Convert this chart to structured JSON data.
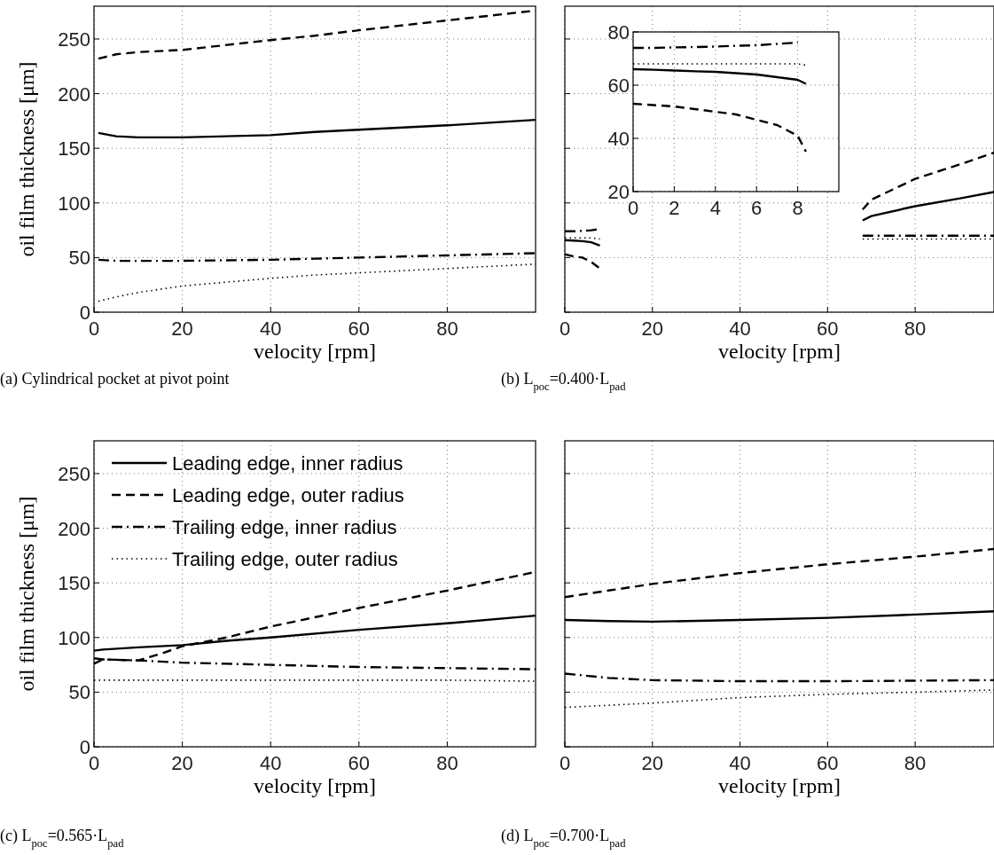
{
  "chart_data": [
    {
      "type": "line",
      "title": "(a) Cylindrical pocket at pivot point",
      "xlabel": "velocity [rpm]",
      "ylabel": "oil film thickness [μm]",
      "xlim": [
        0,
        100
      ],
      "xticks": [
        0,
        20,
        40,
        60,
        80
      ],
      "ylim": [
        0,
        280
      ],
      "yticks": [
        0,
        50,
        100,
        150,
        200,
        250
      ],
      "grid": true,
      "legend": false,
      "x": [
        1,
        5,
        10,
        20,
        40,
        50,
        60,
        80,
        100
      ],
      "series": [
        {
          "color": "#000000",
          "line_style": "solid",
          "values": [
            164,
            161,
            160,
            160,
            162,
            165,
            167,
            171,
            176
          ]
        },
        {
          "color": "#000000",
          "line_style": "dashed",
          "values": [
            232,
            236,
            238,
            240,
            249,
            253,
            258,
            267,
            276
          ]
        },
        {
          "color": "#000000",
          "line_style": "dashdot",
          "values": [
            48,
            47,
            47,
            47,
            48,
            49,
            50,
            52,
            54
          ]
        },
        {
          "color": "#000000",
          "line_style": "dotted",
          "values": [
            10,
            14,
            18,
            24,
            31,
            34,
            36,
            40,
            44
          ]
        }
      ]
    },
    {
      "type": "line",
      "title": "(b) L$_{poc}$=0.400·L$_{pad}$",
      "xlabel": "velocity [rpm]",
      "xlim": [
        0,
        98
      ],
      "xticks": [
        0,
        20,
        40,
        60,
        80
      ],
      "ylim": [
        0,
        280
      ],
      "yticks": [
        0,
        50,
        100,
        150,
        200,
        250
      ],
      "tick_labels": "x",
      "grid": true,
      "legend": false,
      "x": [
        0,
        2,
        4,
        6,
        8,
        30,
        68,
        70,
        80,
        90,
        98
      ],
      "series": [
        {
          "color": "#000000",
          "line_style": "solid",
          "values": [
            66,
            65.5,
            65,
            64,
            61,
            null,
            84,
            88,
            97,
            104,
            110
          ]
        },
        {
          "color": "#000000",
          "line_style": "dashed",
          "values": [
            53,
            51,
            50,
            46,
            40,
            null,
            94,
            103,
            122,
            135,
            146
          ]
        },
        {
          "color": "#000000",
          "line_style": "dashdot",
          "values": [
            74,
            74,
            74.5,
            75,
            76,
            null,
            70,
            70,
            70,
            70,
            70
          ]
        },
        {
          "color": "#000000",
          "line_style": "dotted",
          "values": [
            68,
            68,
            68,
            68,
            67,
            null,
            67,
            67,
            67,
            67,
            67
          ]
        }
      ]
    },
    {
      "type": "line",
      "xlim": [
        0,
        10
      ],
      "xticks": [
        0,
        2,
        4,
        6,
        8
      ],
      "ylim": [
        20,
        80
      ],
      "yticks": [
        20,
        40,
        60,
        80
      ],
      "grid": true,
      "legend": false,
      "x": [
        0,
        1,
        2,
        3,
        4,
        5,
        6,
        7,
        8,
        8.4
      ],
      "series": [
        {
          "color": "#000000",
          "line_style": "solid",
          "values": [
            66,
            65.8,
            65.5,
            65.2,
            65,
            64.5,
            64,
            63,
            62,
            60.5
          ]
        },
        {
          "color": "#000000",
          "line_style": "dashed",
          "values": [
            53,
            52.5,
            52,
            51,
            50,
            49,
            47,
            45,
            41,
            35
          ]
        },
        {
          "color": "#000000",
          "line_style": "dashdot",
          "values": [
            74,
            74,
            74.2,
            74.3,
            74.5,
            74.8,
            75,
            75.5,
            76,
            null
          ]
        },
        {
          "color": "#000000",
          "line_style": "dotted",
          "values": [
            68,
            68,
            68,
            68,
            68,
            68,
            68,
            68,
            68,
            67.5
          ]
        }
      ]
    },
    {
      "type": "line",
      "title": "(c) L$_{poc}$=0.565·L$_{pad}$",
      "xlabel": "velocity [rpm]",
      "ylabel": "oil film thickness [μm]",
      "xlim": [
        0,
        100
      ],
      "xticks": [
        0,
        20,
        40,
        60,
        80
      ],
      "ylim": [
        0,
        280
      ],
      "yticks": [
        0,
        50,
        100,
        150,
        200,
        250
      ],
      "grid": true,
      "legend": "top left",
      "x": [
        0,
        2,
        10,
        15,
        20,
        30,
        40,
        60,
        80,
        100
      ],
      "series": [
        {
          "name": "Leading edge, inner radius",
          "color": "#000000",
          "line_style": "solid",
          "values": [
            88,
            89,
            91,
            92,
            93,
            97,
            100,
            107,
            113,
            120
          ]
        },
        {
          "name": "Leading edge, outer radius",
          "color": "#000000",
          "line_style": "dashed",
          "values": [
            76,
            80,
            79,
            85,
            92,
            100,
            110,
            127,
            143,
            160
          ]
        },
        {
          "name": "Trailing edge, inner radius",
          "color": "#000000",
          "line_style": "dashdot",
          "values": [
            81,
            80,
            79,
            78,
            77,
            76,
            75,
            73,
            72,
            71
          ]
        },
        {
          "name": "Trailing edge, outer radius",
          "color": "#000000",
          "line_style": "dotted",
          "values": [
            61,
            61,
            61,
            61,
            61,
            61,
            61,
            61,
            61,
            60
          ]
        }
      ]
    },
    {
      "type": "line",
      "title": "(d) L$_{poc}$=0.700·L$_{pad}$",
      "xlabel": "velocity [rpm]",
      "xlim": [
        0,
        98
      ],
      "xticks": [
        0,
        20,
        40,
        60,
        80
      ],
      "ylim": [
        0,
        280
      ],
      "yticks": [
        0,
        50,
        100,
        150,
        200,
        250
      ],
      "tick_labels": "x",
      "grid": true,
      "legend": false,
      "x": [
        0,
        10,
        20,
        40,
        60,
        80,
        98
      ],
      "series": [
        {
          "color": "#000000",
          "line_style": "solid",
          "values": [
            116,
            115,
            114.5,
            116,
            118,
            121,
            124
          ]
        },
        {
          "color": "#000000",
          "line_style": "dashed",
          "values": [
            137,
            143,
            149,
            159,
            167,
            174,
            181
          ]
        },
        {
          "color": "#000000",
          "line_style": "dashdot",
          "values": [
            67,
            63,
            61,
            60,
            60,
            60.5,
            61
          ]
        },
        {
          "color": "#000000",
          "line_style": "dotted",
          "values": [
            36,
            38,
            40,
            45,
            48,
            50,
            52
          ]
        }
      ]
    }
  ]
}
